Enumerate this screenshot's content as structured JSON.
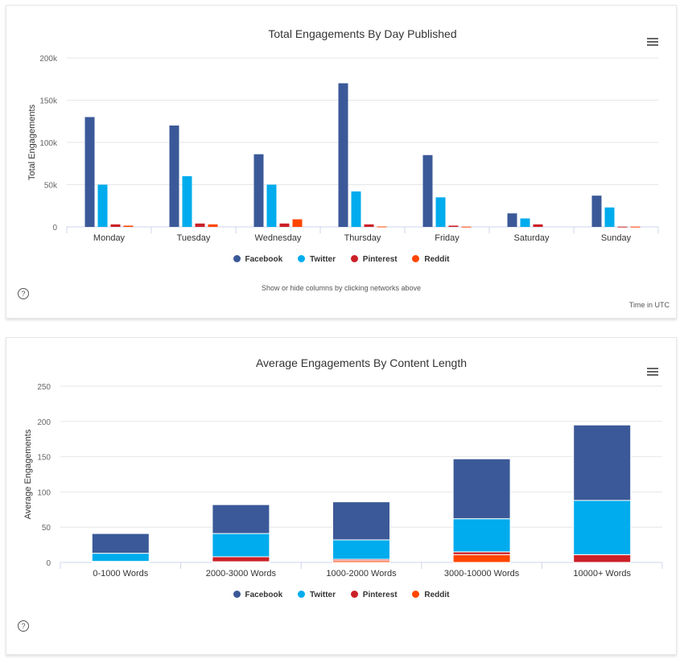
{
  "colors": {
    "Facebook": "#3b5998",
    "Twitter": "#00aced",
    "Pinterest": "#cb2027",
    "Reddit": "#ff4500"
  },
  "legend": [
    "Facebook",
    "Twitter",
    "Pinterest",
    "Reddit"
  ],
  "panel1": {
    "menu_icon": "hamburger-menu-icon",
    "help_icon": "question-circle-icon",
    "help_symbol": "?",
    "note": "Show or hide columns by clicking networks above",
    "time_note": "Time in UTC"
  },
  "panel2": {
    "menu_icon": "hamburger-menu-icon",
    "help_icon": "question-circle-icon",
    "help_symbol": "?"
  },
  "chart_data": [
    {
      "type": "bar",
      "title": "Total Engagements By Day Published",
      "xlabel": "",
      "ylabel": "Total Engagements",
      "ylim": [
        0,
        200000
      ],
      "yticks": [
        0,
        50000,
        100000,
        150000,
        200000
      ],
      "ytick_labels": [
        "0",
        "50k",
        "100k",
        "150k",
        "200k"
      ],
      "grid": true,
      "legend_position": "bottom",
      "categories": [
        "Monday",
        "Tuesday",
        "Wednesday",
        "Thursday",
        "Friday",
        "Saturday",
        "Sunday"
      ],
      "series": [
        {
          "name": "Facebook",
          "values": [
            130000,
            120000,
            86000,
            170000,
            85000,
            16000,
            37000
          ]
        },
        {
          "name": "Twitter",
          "values": [
            50000,
            60000,
            50000,
            42000,
            35000,
            10000,
            23000
          ]
        },
        {
          "name": "Pinterest",
          "values": [
            3000,
            4000,
            4000,
            3000,
            1500,
            3000,
            300
          ]
        },
        {
          "name": "Reddit",
          "values": [
            1500,
            3000,
            9000,
            500,
            300,
            0,
            300
          ]
        }
      ]
    },
    {
      "type": "bar",
      "stacked": true,
      "title": "Average Engagements By Content Length",
      "xlabel": "",
      "ylabel": "Average Engagements",
      "ylim": [
        0,
        250
      ],
      "yticks": [
        0,
        50,
        100,
        150,
        200,
        250
      ],
      "ytick_labels": [
        "0",
        "50",
        "100",
        "150",
        "200",
        "250"
      ],
      "grid": true,
      "legend_position": "bottom",
      "categories": [
        "0-1000 Words",
        "2000-3000 Words",
        "1000-2000 Words",
        "3000-10000 Words",
        "10000+ Words"
      ],
      "series": [
        {
          "name": "Facebook",
          "values": [
            28,
            41,
            54,
            85,
            107
          ]
        },
        {
          "name": "Twitter",
          "values": [
            11.5,
            33,
            27.5,
            47,
            77
          ]
        },
        {
          "name": "Pinterest",
          "values": [
            1,
            7,
            2,
            4,
            11
          ]
        },
        {
          "name": "Reddit",
          "values": [
            0.5,
            1,
            2.5,
            11,
            0
          ]
        }
      ]
    }
  ]
}
